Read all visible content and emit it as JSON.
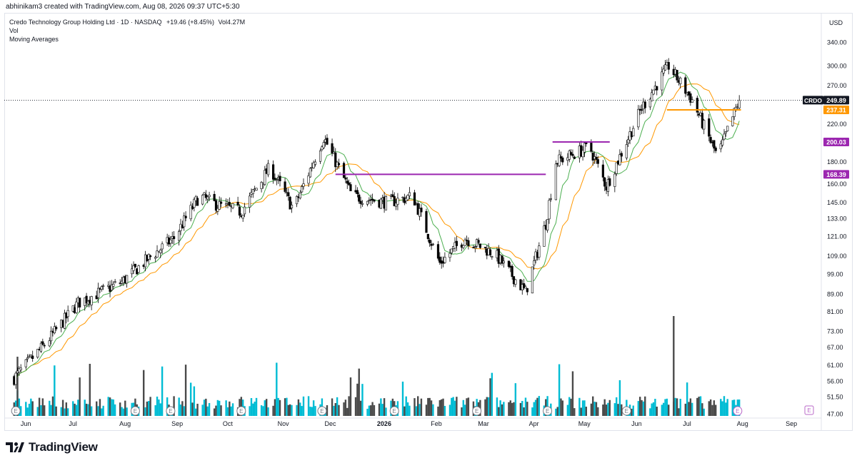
{
  "header": {
    "credit": "abhinikam3 created with TradingView.com, Aug 08, 2026 09:37 UTC+5:30"
  },
  "legend": {
    "title": "Credo Technology Group Holding Ltd · 1D · NASDAQ",
    "change": "+19.46 (+8.45%)",
    "vol_text": "Vol4.27M",
    "vol_label": "Vol",
    "ma_label": "Moving Averages"
  },
  "currency": "USD",
  "footer": {
    "brand": "TradingView"
  },
  "colors": {
    "up": "#000000",
    "down": "#000000",
    "ma_fast": "#4caf50",
    "ma_slow": "#ff9800",
    "vol_up": "#26a69a",
    "vol_teal": "#00bcd4",
    "vol_dark": "#4a4a4a",
    "level_orange": "#ff9800",
    "level_purple": "#9c27b0",
    "ticker_tag": "#131722"
  },
  "chart_data": {
    "type": "candlestick",
    "symbol": "CRDO",
    "timeframe": "1D",
    "exchange": "NASDAQ",
    "y_scale": "log",
    "ylim": [
      44,
      380
    ],
    "y_ticks": [
      340,
      300,
      270,
      220,
      180,
      160,
      145,
      133,
      121,
      109,
      99,
      89,
      81,
      73,
      67,
      61,
      56,
      51.5,
      47
    ],
    "y_tick_labels": [
      "340.00",
      "300.00",
      "270.00",
      "220.00",
      "180.00",
      "160.00",
      "145.00",
      "133.00",
      "121.00",
      "109.00",
      "99.00",
      "89.00",
      "81.00",
      "73.00",
      "67.00",
      "61.00",
      "56.00",
      "51.50",
      "47.00"
    ],
    "x_labels": [
      "Jun",
      "Jul",
      "Aug",
      "Sep",
      "Oct",
      "Nov",
      "Dec",
      "2026",
      "Feb",
      "Mar",
      "Apr",
      "May",
      "Jun",
      "Jul",
      "Aug",
      "Sep"
    ],
    "x_label_bold": "2026",
    "price_tags": [
      {
        "label": "CRDO",
        "value": 249.89,
        "kind": "last"
      },
      {
        "value": 237.31,
        "kind": "level-orange"
      },
      {
        "value": 200.03,
        "kind": "level-purple"
      },
      {
        "value": 168.39,
        "kind": "level-purple"
      }
    ],
    "horizontal_levels": [
      {
        "value": 237.31,
        "color": "orange",
        "from": "2026-06-25",
        "to": "2026-08-08"
      },
      {
        "value": 200.03,
        "color": "purple",
        "from": "2026-04-18",
        "to": "2026-05-22"
      },
      {
        "value": 168.39,
        "color": "purple",
        "from": "2025-12-10",
        "to": "2026-04-14"
      }
    ],
    "price_path": [
      {
        "d": "2025-06-02",
        "close": 57
      },
      {
        "d": "2025-06-20",
        "close": 68
      },
      {
        "d": "2025-07-10",
        "close": 85
      },
      {
        "d": "2025-08-05",
        "close": 95
      },
      {
        "d": "2025-08-20",
        "close": 107
      },
      {
        "d": "2025-09-05",
        "close": 120
      },
      {
        "d": "2025-09-20",
        "close": 150
      },
      {
        "d": "2025-10-01",
        "close": 143
      },
      {
        "d": "2025-10-15",
        "close": 138
      },
      {
        "d": "2025-11-01",
        "close": 175
      },
      {
        "d": "2025-11-15",
        "close": 140
      },
      {
        "d": "2025-12-03",
        "close": 205
      },
      {
        "d": "2025-12-20",
        "close": 150
      },
      {
        "d": "2026-01-10",
        "close": 145
      },
      {
        "d": "2026-01-25",
        "close": 150
      },
      {
        "d": "2026-02-10",
        "close": 105
      },
      {
        "d": "2026-02-25",
        "close": 120
      },
      {
        "d": "2026-03-15",
        "close": 110
      },
      {
        "d": "2026-04-02",
        "close": 90
      },
      {
        "d": "2026-04-14",
        "close": 130
      },
      {
        "d": "2026-04-20",
        "close": 180
      },
      {
        "d": "2026-05-10",
        "close": 195
      },
      {
        "d": "2026-05-20",
        "close": 158
      },
      {
        "d": "2026-06-10",
        "close": 240
      },
      {
        "d": "2026-06-26",
        "close": 300
      },
      {
        "d": "2026-07-10",
        "close": 250
      },
      {
        "d": "2026-07-25",
        "close": 185
      },
      {
        "d": "2026-08-07",
        "close": 249.89
      }
    ],
    "volume_markers": [
      "E",
      "E",
      "E",
      "E",
      "E",
      "E",
      "E",
      "E",
      "E",
      "E"
    ]
  }
}
